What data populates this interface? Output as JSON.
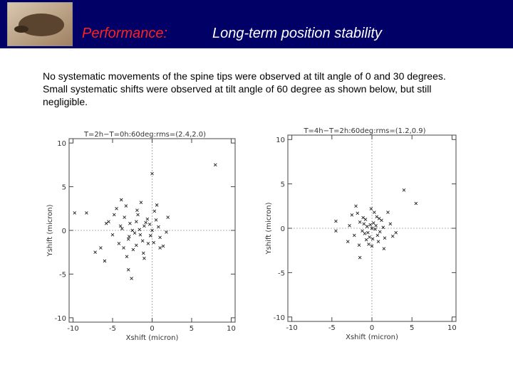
{
  "header": {
    "title": "Performance:",
    "subtitle": "Long-term position stability"
  },
  "body": {
    "text": "No systematic movements of the spine tips were observed at tilt angle of 0 and 30 degrees. Small systematic shifts were observed at tilt angle of 60 degree as shown below, but still negligible."
  },
  "chart_data": [
    {
      "type": "scatter",
      "title": "T=2h−T=0h:60deg:rms=(2.4,2.0)",
      "xlabel": "Xshift (micron)",
      "ylabel": "Yshift (micron)",
      "xlim": [
        -10.5,
        10.5
      ],
      "ylim": [
        -10.5,
        10.5
      ],
      "xticks": [
        -10,
        -5,
        0,
        5,
        10
      ],
      "yticks": [
        -10,
        -5,
        0,
        5,
        10
      ],
      "zero_lines": true,
      "color": "#222222",
      "series": [
        {
          "color": "#222222",
          "x": [
            8.0,
            0.0,
            -8.3,
            -9.8,
            -7.2,
            -6.0,
            -3.0,
            -2.6,
            -3.2,
            -1.0,
            1.0,
            2.0,
            -4.5,
            -5.5,
            -5.0,
            -4.0,
            -3.5,
            -3.0,
            -2.5,
            -2.0,
            -1.5,
            -1.0,
            -0.5,
            0.0,
            0.5,
            1.0,
            -4.2,
            -3.8,
            -2.8,
            -2.2,
            -1.8,
            -1.2,
            -0.8,
            -0.2,
            0.3,
            0.8,
            1.4,
            -3.3,
            -2.4,
            -1.6,
            -0.6,
            0.2,
            -2.9,
            -1.9,
            -1.1,
            -0.3,
            -4.8,
            -3.6,
            -2.0,
            0.6,
            1.8,
            -6.5,
            -5.8,
            -3.9,
            -1.4
          ],
          "values": [
            7.5,
            6.5,
            2.0,
            2.0,
            -2.5,
            -3.5,
            -4.5,
            -5.5,
            -3.0,
            -3.2,
            -2.0,
            1.5,
            2.5,
            1.0,
            -0.5,
            0.5,
            1.5,
            -1.0,
            0.0,
            1.0,
            -0.5,
            0.5,
            -1.5,
            0.0,
            1.2,
            -0.8,
            -1.5,
            0.2,
            0.8,
            -0.3,
            1.8,
            -1.2,
            0.9,
            -0.6,
            2.2,
            0.4,
            -1.8,
            2.8,
            -2.2,
            0.1,
            1.3,
            -1.4,
            -0.7,
            2.3,
            -2.6,
            0.7,
            1.8,
            -2.0,
            -1.7,
            2.9,
            -0.2,
            -2.0,
            0.8,
            3.5,
            3.2
          ]
        }
      ]
    },
    {
      "type": "scatter",
      "title": "T=4h−T=2h:60deg:rms=(1.2,0.9)",
      "xlabel": "Xshift (micron)",
      "ylabel": "Yshift (micron)",
      "xlim": [
        -10.5,
        10.5
      ],
      "ylim": [
        -10.5,
        10.5
      ],
      "xticks": [
        -10,
        -5,
        0,
        5,
        10
      ],
      "yticks": [
        -10,
        -5,
        0,
        5,
        10
      ],
      "zero_lines": true,
      "color": "#222222",
      "series": [
        {
          "color": "#222222",
          "x": [
            4.0,
            5.5,
            -4.5,
            -4.5,
            -1.5,
            -2.5,
            -3.0,
            -2.0,
            2.0,
            1.5,
            3.0,
            -1.0,
            -0.5,
            0.0,
            0.5,
            1.0,
            -0.8,
            -0.3,
            0.2,
            0.7,
            1.2,
            -1.2,
            -0.6,
            0.1,
            0.6,
            -1.5,
            -0.9,
            -0.2,
            0.4,
            0.9,
            1.6,
            -2.2,
            -1.8,
            2.3,
            -0.4,
            0.3,
            -1.1,
            0.8,
            -0.7,
            1.4,
            -2.8,
            2.6,
            -0.1,
            0.0,
            -1.6
          ],
          "values": [
            4.3,
            2.8,
            0.8,
            -0.3,
            -3.3,
            1.5,
            -1.5,
            2.5,
            1.8,
            -2.3,
            -0.5,
            0.5,
            -0.5,
            0.0,
            0.3,
            -0.4,
            1.0,
            -1.0,
            0.6,
            -0.8,
            0.9,
            -0.3,
            0.2,
            -1.2,
            1.3,
            0.7,
            -0.6,
            0.4,
            -0.1,
            1.1,
            -1.1,
            -0.8,
            1.7,
            0.5,
            -1.8,
            1.8,
            1.2,
            -1.5,
            -1.3,
            0.1,
            0.3,
            -0.9,
            2.2,
            -2.0,
            -1.9
          ]
        }
      ]
    }
  ]
}
